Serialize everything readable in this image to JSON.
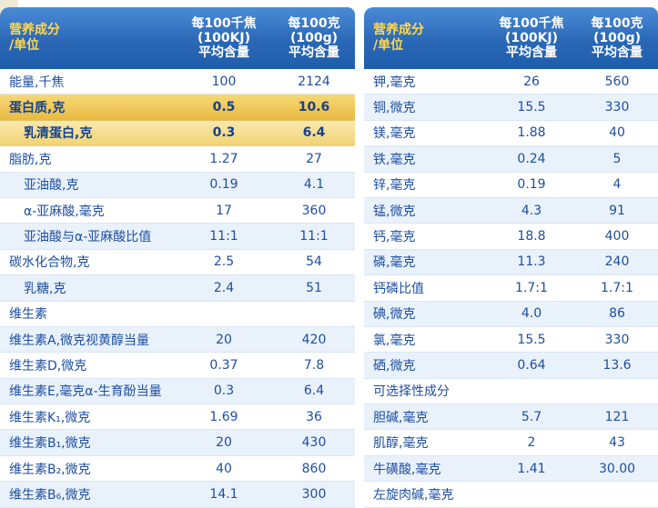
{
  "colors": {
    "header_blue": "#2a68b6",
    "header_yellow": "#ffd94f",
    "row_alt_blue": "#e9f1fb",
    "highlight_gold": "#e9ba41",
    "highlight_gold_light": "#f1d373",
    "text_navy": "#1d4fa0",
    "corner_cream": "#f0e9d6"
  },
  "tables": [
    {
      "name": "nutrition-table-left",
      "header": {
        "name": [
          "营养成分",
          "/单位"
        ],
        "col1": [
          "每100千焦",
          "(100KJ)",
          "平均含量"
        ],
        "col2": [
          "每100克",
          "(100g)",
          "平均含量"
        ]
      },
      "rows": [
        {
          "label": "能量,千焦",
          "per100kj": "100",
          "per100g": "2124",
          "tone": "white",
          "indent": false
        },
        {
          "label": "蛋白质,克",
          "per100kj": "0.5",
          "per100g": "10.6",
          "tone": "gold",
          "indent": false
        },
        {
          "label": "乳清蛋白,克",
          "per100kj": "0.3",
          "per100g": "6.4",
          "tone": "goldLight",
          "indent": true
        },
        {
          "label": "脂肪,克",
          "per100kj": "1.27",
          "per100g": "27",
          "tone": "white",
          "indent": false
        },
        {
          "label": "亚油酸,克",
          "per100kj": "0.19",
          "per100g": "4.1",
          "tone": "blue",
          "indent": true
        },
        {
          "label": "α-亚麻酸,毫克",
          "per100kj": "17",
          "per100g": "360",
          "tone": "white",
          "indent": true
        },
        {
          "label": "亚油酸与α-亚麻酸比值",
          "per100kj": "11:1",
          "per100g": "11:1",
          "tone": "blue",
          "indent": true
        },
        {
          "label": "碳水化合物,克",
          "per100kj": "2.5",
          "per100g": "54",
          "tone": "white",
          "indent": false
        },
        {
          "label": "乳糖,克",
          "per100kj": "2.4",
          "per100g": "51",
          "tone": "blue",
          "indent": true
        },
        {
          "label": "维生素",
          "per100kj": "",
          "per100g": "",
          "tone": "white",
          "indent": false
        },
        {
          "label": "维生素A,微克视黄醇当量",
          "per100kj": "20",
          "per100g": "420",
          "tone": "blue",
          "indent": false
        },
        {
          "label": "维生素D,微克",
          "per100kj": "0.37",
          "per100g": "7.8",
          "tone": "white",
          "indent": false
        },
        {
          "label": "维生素E,毫克α-生育酚当量",
          "per100kj": "0.3",
          "per100g": "6.4",
          "tone": "blue",
          "indent": false
        },
        {
          "label": "维生素K₁,微克",
          "per100kj": "1.69",
          "per100g": "36",
          "tone": "white",
          "indent": false
        },
        {
          "label": "维生素B₁,微克",
          "per100kj": "20",
          "per100g": "430",
          "tone": "blue",
          "indent": false
        },
        {
          "label": "维生素B₂,微克",
          "per100kj": "40",
          "per100g": "860",
          "tone": "white",
          "indent": false
        },
        {
          "label": "维生素B₆,微克",
          "per100kj": "14.1",
          "per100g": "300",
          "tone": "blue",
          "indent": false
        }
      ]
    },
    {
      "name": "nutrition-table-right",
      "header": {
        "name": [
          "营养成分",
          "/单位"
        ],
        "col1": [
          "每100千焦",
          "(100KJ)",
          "平均含量"
        ],
        "col2": [
          "每100克",
          "(100g)",
          "平均含量"
        ]
      },
      "rows": [
        {
          "label": "钾,毫克",
          "per100kj": "26",
          "per100g": "560",
          "tone": "white",
          "indent": false
        },
        {
          "label": "铜,微克",
          "per100kj": "15.5",
          "per100g": "330",
          "tone": "blue",
          "indent": false
        },
        {
          "label": "镁,毫克",
          "per100kj": "1.88",
          "per100g": "40",
          "tone": "white",
          "indent": false
        },
        {
          "label": "铁,毫克",
          "per100kj": "0.24",
          "per100g": "5",
          "tone": "blue",
          "indent": false
        },
        {
          "label": "锌,毫克",
          "per100kj": "0.19",
          "per100g": "4",
          "tone": "white",
          "indent": false
        },
        {
          "label": "锰,微克",
          "per100kj": "4.3",
          "per100g": "91",
          "tone": "blue",
          "indent": false
        },
        {
          "label": "钙,毫克",
          "per100kj": "18.8",
          "per100g": "400",
          "tone": "white",
          "indent": false
        },
        {
          "label": "磷,毫克",
          "per100kj": "11.3",
          "per100g": "240",
          "tone": "blue",
          "indent": false
        },
        {
          "label": "钙磷比值",
          "per100kj": "1.7:1",
          "per100g": "1.7:1",
          "tone": "white",
          "indent": false
        },
        {
          "label": "碘,微克",
          "per100kj": "4.0",
          "per100g": "86",
          "tone": "blue",
          "indent": false
        },
        {
          "label": "氯,毫克",
          "per100kj": "15.5",
          "per100g": "330",
          "tone": "white",
          "indent": false
        },
        {
          "label": "硒,微克",
          "per100kj": "0.64",
          "per100g": "13.6",
          "tone": "blue",
          "indent": false
        },
        {
          "label": "可选择性成分",
          "per100kj": "",
          "per100g": "",
          "tone": "white",
          "indent": false
        },
        {
          "label": "胆碱,毫克",
          "per100kj": "5.7",
          "per100g": "121",
          "tone": "blue",
          "indent": false
        },
        {
          "label": "肌醇,毫克",
          "per100kj": "2",
          "per100g": "43",
          "tone": "white",
          "indent": false
        },
        {
          "label": "牛磺酸,毫克",
          "per100kj": "1.41",
          "per100g": "30.00",
          "tone": "blue",
          "indent": false
        },
        {
          "label": "左旋肉碱,毫克",
          "per100kj": "",
          "per100g": "",
          "tone": "white",
          "indent": false
        }
      ]
    }
  ]
}
